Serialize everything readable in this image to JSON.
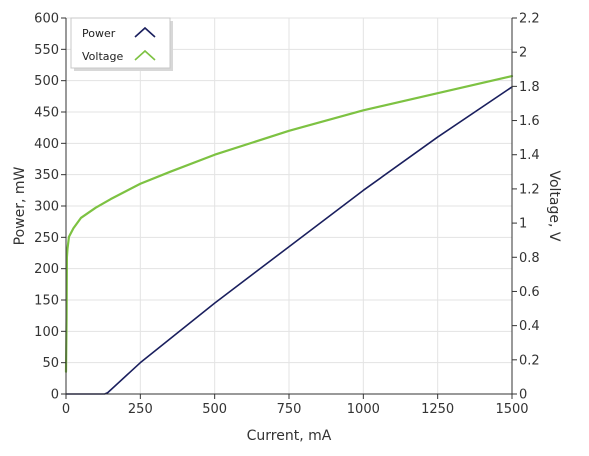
{
  "chart_data": {
    "type": "line",
    "title": "",
    "xlabel": "Current, mA",
    "ylabel_left": "Power, mW",
    "ylabel_right": "Voltage, V",
    "xlim": [
      0,
      1500
    ],
    "ylim_left": [
      0,
      600
    ],
    "ylim_right": [
      0,
      2.2
    ],
    "xticks": [
      0,
      250,
      500,
      750,
      1000,
      1250,
      1500
    ],
    "yticks_left": [
      0,
      50,
      100,
      150,
      200,
      250,
      300,
      350,
      400,
      450,
      500,
      550,
      600
    ],
    "yticks_right": [
      0,
      0.2,
      0.4,
      0.6,
      0.8,
      1,
      1.2,
      1.4,
      1.6,
      1.8,
      2,
      2.2
    ],
    "grid": true,
    "legend_position": "top-left",
    "series": [
      {
        "name": "Power",
        "axis": "left",
        "color": "#1a1f5e",
        "x": [
          0,
          10,
          130,
          140,
          250,
          500,
          750,
          1000,
          1250,
          1500
        ],
        "y": [
          0,
          0,
          0,
          2,
          50,
          145,
          235,
          325,
          410,
          490
        ]
      },
      {
        "name": "Voltage",
        "axis": "right",
        "color": "#7dc242",
        "x": [
          0,
          2,
          3,
          5,
          10,
          25,
          50,
          100,
          150,
          250,
          350,
          500,
          750,
          1000,
          1250,
          1500
        ],
        "y": [
          0.13,
          0.45,
          0.8,
          0.85,
          0.92,
          0.97,
          1.03,
          1.09,
          1.14,
          1.23,
          1.3,
          1.4,
          1.54,
          1.66,
          1.76,
          1.86
        ]
      }
    ]
  }
}
